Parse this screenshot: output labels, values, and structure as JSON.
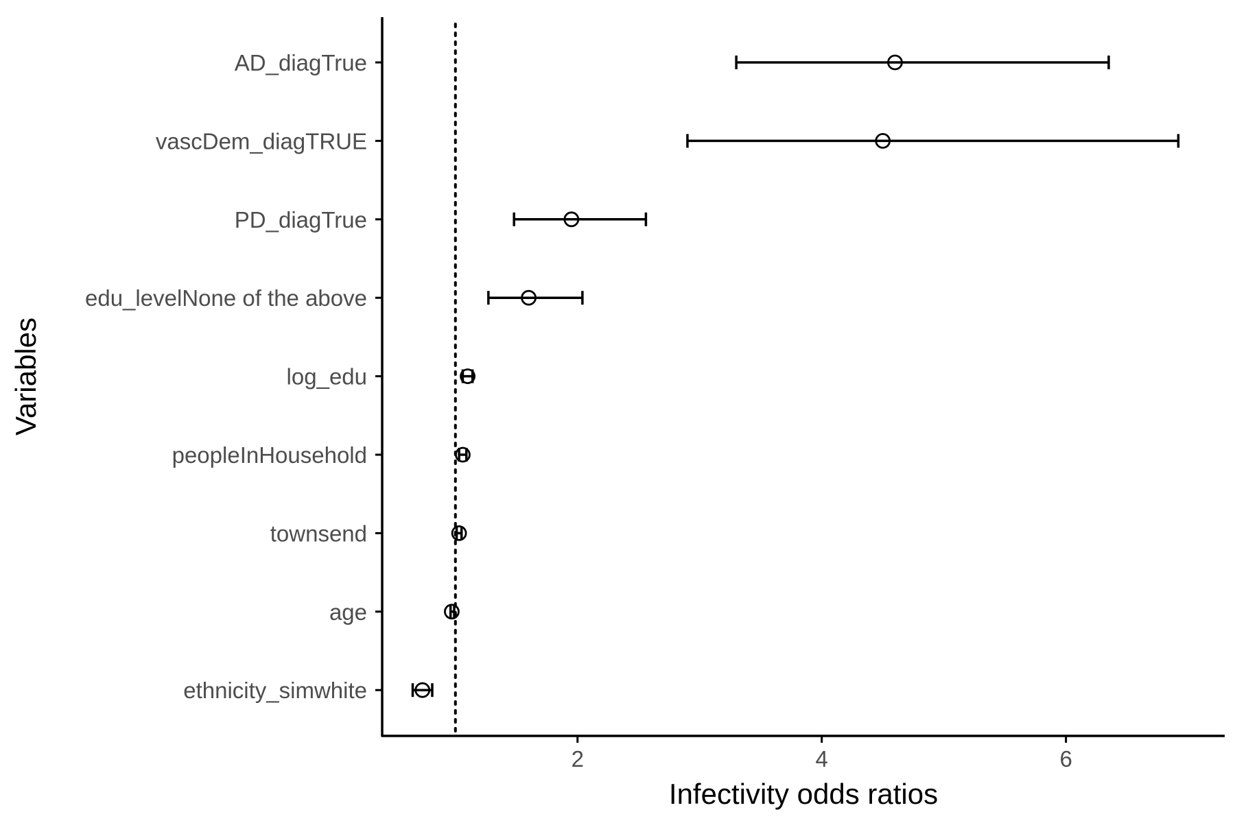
{
  "chart_data": {
    "type": "scatter",
    "subtype": "forest",
    "title": "",
    "xlabel": "Infectivity odds ratios",
    "ylabel": "Variables",
    "xlim": [
      0.4,
      7.3
    ],
    "xticks": [
      2,
      4,
      6
    ],
    "reference_line": {
      "x": 1,
      "style": "dotted"
    },
    "grid": false,
    "legend": "none",
    "categories": [
      "AD_diagTrue",
      "vascDem_diagTRUE",
      "PD_diagTrue",
      "edu_levelNone of the above",
      "log_edu",
      "peopleInHousehold",
      "townsend",
      "age",
      "ethnicity_simwhite"
    ],
    "estimates": [
      4.6,
      4.5,
      1.95,
      1.6,
      1.1,
      1.06,
      1.03,
      0.97,
      0.73
    ],
    "ci_lower": [
      3.3,
      2.9,
      1.48,
      1.27,
      1.06,
      1.03,
      1.01,
      0.96,
      0.65
    ],
    "ci_upper": [
      6.35,
      6.92,
      2.56,
      2.04,
      1.14,
      1.09,
      1.05,
      0.99,
      0.81
    ]
  }
}
